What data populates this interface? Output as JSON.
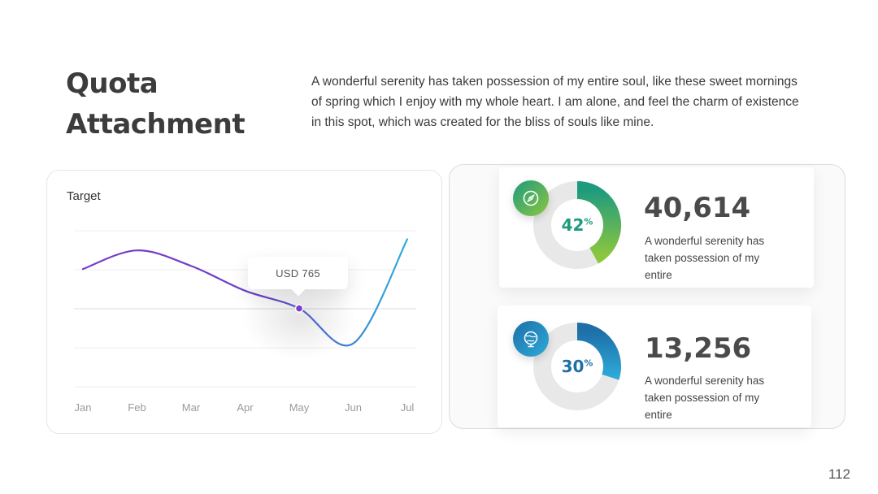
{
  "slide": {
    "title_line1": "Quota",
    "title_line2": "Attachment",
    "intro": "A wonderful serenity has taken possession of my entire soul, like these sweet mornings of spring which I enjoy with my whole heart. I am alone, and feel the charm of existence in this spot, which was created for the bliss of souls like mine.",
    "page_number": "112"
  },
  "chart_data": {
    "type": "line",
    "title": "Target",
    "categories": [
      "Jan",
      "Feb",
      "Mar",
      "Apr",
      "May",
      "Jun",
      "Jul"
    ],
    "series": [
      {
        "values": [
          1400,
          1700,
          1450,
          1050,
          765,
          200,
          1880
        ]
      }
    ],
    "highlight": {
      "category": "May",
      "label": "USD 765"
    },
    "grid": true,
    "colors": {
      "line_start": "#7c3dc8",
      "line_end": "#2eb0dc",
      "marker": "#7b3fd0"
    }
  },
  "stats": [
    {
      "percent": "42",
      "percent_value": 42,
      "percent_symbol": "%",
      "value": "40,614",
      "description": "A wonderful serenity has taken possession of my entire",
      "icon": "compass-icon",
      "color": "#8cc63f",
      "color_dark": "#1e9b7e"
    },
    {
      "percent": "30",
      "percent_value": 30,
      "percent_symbol": "%",
      "value": "13,256",
      "description": "A wonderful serenity has taken possession of my entire",
      "icon": "globe-icon",
      "color": "#2eaad8",
      "color_dark": "#1e6fa8"
    }
  ]
}
